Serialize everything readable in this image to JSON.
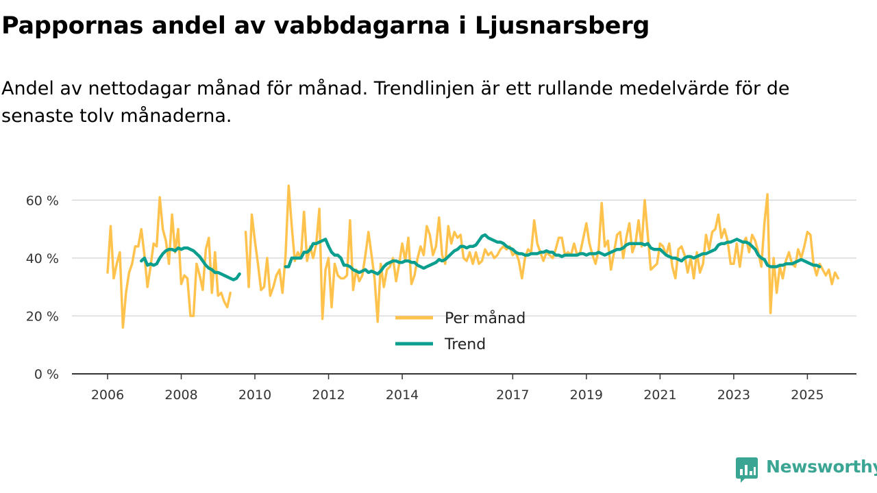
{
  "chart_data": {
    "type": "line",
    "title": "Pappornas andel av vabbdagarna i Ljusnarsberg",
    "subtitle": "Andel av nettodagar månad för månad. Trendlinjen är ett rullande medelvärde för de senaste tolv månaderna.",
    "xlabel": "",
    "ylabel": "",
    "x_range": [
      2006.0,
      2025.42
    ],
    "ylim": [
      0,
      70
    ],
    "y_ticks": [
      0,
      20,
      40,
      60
    ],
    "y_tick_labels": [
      "0 %",
      "20 %",
      "40 %",
      "60 %"
    ],
    "x_ticks": [
      2006,
      2008,
      2010,
      2012,
      2014,
      2017,
      2019,
      2021,
      2023,
      2025
    ],
    "x_tick_labels": [
      "2006",
      "2008",
      "2010",
      "2012",
      "2014",
      "2017",
      "2019",
      "2021",
      "2023",
      "2025"
    ],
    "grid": true,
    "legend_position": "center",
    "series": [
      {
        "name": "Per månad",
        "color": "#ffc34d",
        "start": 2006.0,
        "step": 0.08333,
        "values": [
          35,
          51,
          33,
          38,
          42,
          16,
          28,
          35,
          38,
          44,
          44,
          50,
          41,
          30,
          37,
          45,
          44,
          61,
          50,
          46,
          38,
          55,
          42,
          50,
          31,
          34,
          33,
          20,
          20,
          38,
          34,
          29,
          43,
          47,
          28,
          42,
          27,
          28,
          25,
          23,
          28,
          null,
          null,
          null,
          null,
          49,
          30,
          55,
          46,
          38,
          29,
          30,
          40,
          27,
          30,
          34,
          36,
          28,
          41,
          65,
          51,
          39,
          42,
          40,
          56,
          39,
          44,
          40,
          45,
          57,
          19,
          36,
          40,
          23,
          38,
          34,
          33,
          33,
          34,
          53,
          29,
          36,
          32,
          34,
          41,
          49,
          41,
          33,
          18,
          38,
          30,
          36,
          37,
          40,
          32,
          38,
          45,
          39,
          47,
          31,
          34,
          40,
          44,
          41,
          51,
          48,
          41,
          44,
          54,
          41,
          38,
          51,
          45,
          49,
          47,
          48,
          40,
          39,
          42,
          38,
          42,
          38,
          39,
          43,
          41,
          42,
          40,
          41,
          43,
          44,
          43,
          44,
          41,
          42,
          39,
          33,
          40,
          43,
          42,
          53,
          45,
          42,
          39,
          42,
          41,
          40,
          43,
          47,
          47,
          41,
          42,
          41,
          45,
          41,
          42,
          47,
          52,
          45,
          41,
          38,
          43,
          59,
          44,
          46,
          36,
          42,
          48,
          49,
          40,
          47,
          52,
          42,
          45,
          53,
          44,
          60,
          48,
          36,
          37,
          38,
          45,
          44,
          41,
          45,
          37,
          33,
          43,
          44,
          41,
          35,
          40,
          33,
          42,
          35,
          38,
          48,
          43,
          49,
          50,
          55,
          47,
          50,
          46,
          38,
          38,
          45,
          37,
          45,
          47,
          42,
          48,
          46,
          42,
          37,
          52,
          62,
          21,
          40,
          28,
          37,
          33,
          39,
          42,
          38,
          37,
          43,
          40,
          44,
          49,
          48,
          38,
          34,
          38,
          36,
          34,
          36,
          31,
          35,
          33
        ]
      },
      {
        "name": "Trend",
        "color": "#0a9e8f",
        "start": 2006.917,
        "step": 0.08333,
        "values": [
          39,
          40,
          37.5,
          38,
          37.5,
          38,
          40,
          41.5,
          42.5,
          43,
          43,
          42.5,
          43.5,
          43,
          43.5,
          43.5,
          43,
          42.5,
          41.5,
          40.5,
          39,
          37.5,
          36.5,
          36,
          35,
          35,
          34.5,
          34,
          33.5,
          33,
          32.5,
          33,
          34.5,
          null,
          null,
          null,
          null,
          null,
          null,
          null,
          null,
          null,
          null,
          null,
          null,
          null,
          null,
          37,
          37,
          40,
          40,
          40,
          40,
          42,
          42,
          43,
          45,
          45,
          45.5,
          46,
          46.5,
          44,
          42,
          41,
          41,
          40,
          37.5,
          37.5,
          37,
          36,
          35.5,
          35,
          35.5,
          36,
          35,
          35.5,
          35,
          34.5,
          35.5,
          37,
          38,
          38.5,
          39,
          39,
          38.5,
          38.5,
          39,
          39,
          38.5,
          38.5,
          37.5,
          37,
          36.5,
          37,
          37.5,
          38,
          38.5,
          39.5,
          39,
          39.5,
          40.5,
          41.5,
          42.5,
          43,
          44,
          44,
          43.5,
          44,
          44,
          44.5,
          46,
          47.5,
          48,
          47,
          46.5,
          46,
          45.5,
          45.5,
          45,
          44,
          43.5,
          43,
          42,
          41.5,
          41.5,
          41,
          41,
          41.5,
          41.5,
          41.5,
          42,
          42,
          42.5,
          42,
          42,
          41,
          41,
          40.5,
          41,
          41,
          41,
          41,
          41,
          41.5,
          41.5,
          41,
          41.5,
          41.5,
          41.5,
          42,
          41.5,
          41,
          41.5,
          42,
          42.5,
          43,
          43,
          43.5,
          44.5,
          45,
          45,
          45,
          45,
          45,
          44.5,
          45,
          43.5,
          43,
          43,
          43,
          42,
          41,
          40.5,
          40,
          40,
          39.5,
          39,
          40,
          40.5,
          40.5,
          40,
          40.5,
          41,
          41.5,
          41.5,
          42,
          42.5,
          43,
          44.5,
          45,
          45,
          45.5,
          45.5,
          46,
          46.5,
          46,
          45.5,
          45.5,
          45,
          44,
          43,
          41,
          40,
          39.5,
          37.5,
          37,
          37,
          37,
          37.5,
          37.5,
          38,
          38,
          38,
          38.5,
          39,
          39.5,
          39,
          38.5,
          38,
          37.5,
          37.5,
          37
        ]
      }
    ]
  },
  "brand": {
    "name": "Newsworthy",
    "color": "#3aa593"
  }
}
